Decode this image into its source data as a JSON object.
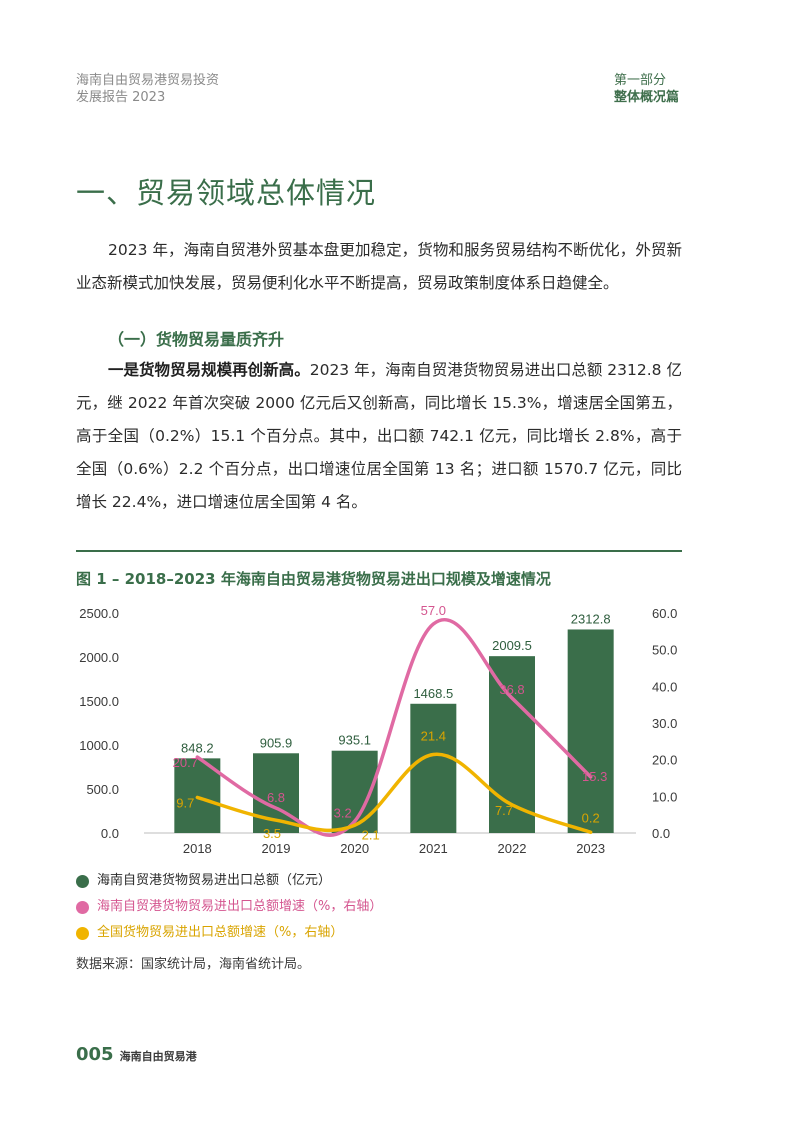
{
  "header": {
    "left_line1": "海南自由贸易港贸易投资",
    "left_line2": "发展报告 2023",
    "right_line1": "第一部分",
    "right_line2": "整体概况篇"
  },
  "section_title": "一、贸易领域总体情况",
  "intro_paragraph": "2023 年，海南自贸港外贸基本盘更加稳定，货物和服务贸易结构不断优化，外贸新业态新模式加快发展，贸易便利化水平不断提高，贸易政策制度体系日趋健全。",
  "subsection_title": "（一）货物贸易量质齐升",
  "paragraph2": {
    "lead": "一是货物贸易规模再创新高。",
    "body": "2023 年，海南自贸港货物贸易进出口总额 2312.8 亿元，继 2022 年首次突破 2000 亿元后又创新高，同比增长 15.3%，增速居全国第五，高于全国（0.2%）15.1 个百分点。其中，出口额 742.1 亿元，同比增长 2.8%，高于全国（0.6%）2.2 个百分点，出口增速位居全国第 13 名；进口额 1570.7 亿元，同比增长 22.4%，进口增速位居全国第 4 名。"
  },
  "figure_title": "图 1 – 2018–2023 年海南自由贸易港货物贸易进出口规模及增速情况",
  "chart_data": {
    "type": "bar",
    "categories": [
      "2018",
      "2019",
      "2020",
      "2021",
      "2022",
      "2023"
    ],
    "left_axis": {
      "ticks": [
        "0.0",
        "500.0",
        "1000.0",
        "1500.0",
        "2000.0",
        "2500.0"
      ],
      "ylim": [
        0,
        2500
      ]
    },
    "right_axis": {
      "ticks": [
        "0.0",
        "10.0",
        "20.0",
        "30.0",
        "40.0",
        "50.0",
        "60.0"
      ],
      "ylim": [
        0,
        60
      ]
    },
    "series": [
      {
        "name": "海南自贸港货物贸易进出口总额（亿元）",
        "type": "bar",
        "axis": "left",
        "color": "#3a6e4a",
        "values": [
          848.2,
          905.9,
          935.1,
          1468.5,
          2009.5,
          2312.8
        ],
        "labels": [
          "848.2",
          "905.9",
          "935.1",
          "1468.5",
          "2009.5",
          "2312.8"
        ]
      },
      {
        "name": "海南自贸港货物贸易进出口总额增速（%，右轴）",
        "type": "line",
        "axis": "right",
        "color": "#e06aa3",
        "values": [
          20.7,
          6.8,
          3.2,
          57.0,
          36.8,
          15.3
        ],
        "labels": [
          "20.7",
          "6.8",
          "3.2",
          "57.0",
          "36.8",
          "15.3"
        ]
      },
      {
        "name": "全国货物贸易进出口总额增速（%，右轴）",
        "type": "line",
        "axis": "right",
        "color": "#f0b400",
        "values": [
          9.7,
          3.5,
          2.1,
          21.4,
          7.7,
          0.2
        ],
        "labels": [
          "9.7",
          "3.5",
          "2.1",
          "21.4",
          "7.7",
          "0.2"
        ]
      }
    ]
  },
  "legend": {
    "item1": "海南自贸港货物贸易进出口总额（亿元）",
    "item2": "海南自贸港货物贸易进出口总额增速（%，右轴）",
    "item3": "全国货物贸易进出口总额增速（%，右轴）",
    "color1": "#3a6e4a",
    "color2": "#e06aa3",
    "color3": "#f0b400"
  },
  "source_note": "数据来源：国家统计局，海南省统计局。",
  "footer": {
    "page_number": "005",
    "publication": "海南自由贸易港"
  }
}
